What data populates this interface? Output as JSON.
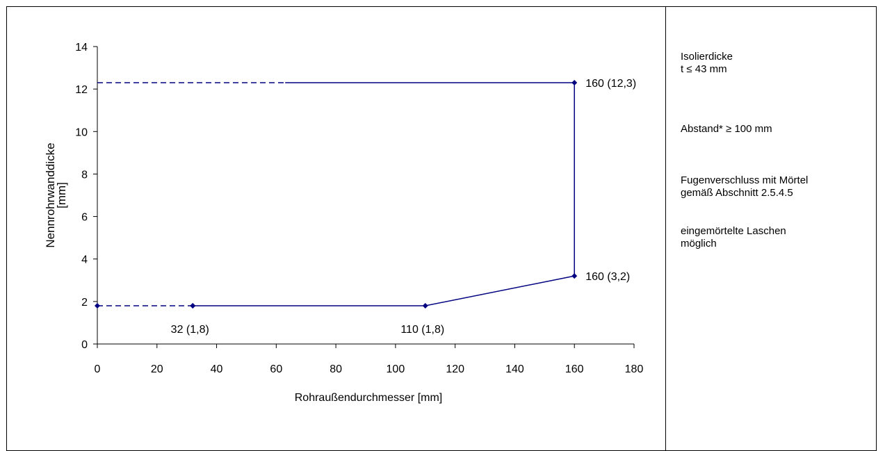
{
  "chart_data": {
    "type": "line",
    "xlabel": "Rohraußendurchmesser [mm]",
    "ylabel": "Nennrohrwanddicke\n[mm]",
    "xlim": [
      0,
      180
    ],
    "ylim": [
      0,
      14
    ],
    "xticks": [
      0,
      20,
      40,
      60,
      80,
      100,
      120,
      140,
      160,
      180
    ],
    "yticks": [
      0,
      2,
      4,
      6,
      8,
      10,
      12,
      14
    ],
    "grid": false,
    "line_color": "#000080",
    "series": [
      {
        "style": "solid",
        "markers": true,
        "x": [
          32,
          110,
          160,
          160
        ],
        "y": [
          1.8,
          1.8,
          3.2,
          12.3
        ]
      },
      {
        "style": "solid",
        "markers": false,
        "x": [
          63,
          160
        ],
        "y": [
          12.3,
          12.3
        ]
      },
      {
        "style": "dashed",
        "markers": true,
        "x": [
          0,
          32
        ],
        "y": [
          1.8,
          1.8
        ]
      },
      {
        "style": "dashed",
        "markers": false,
        "x": [
          0,
          63
        ],
        "y": [
          12.3,
          12.3
        ]
      }
    ],
    "annotations": [
      {
        "text": "32 (1,8)",
        "x": 32,
        "y": 1.8,
        "position": "below"
      },
      {
        "text": "110 (1,8)",
        "x": 110,
        "y": 1.8,
        "position": "below"
      },
      {
        "text": "160 (3,2)",
        "x": 160,
        "y": 3.2,
        "position": "right"
      },
      {
        "text": "160 (12,3)",
        "x": 160,
        "y": 12.3,
        "position": "right"
      }
    ]
  },
  "notes": {
    "thickness": "Isolierdicke\nt ≤ 43 mm",
    "distance": "Abstand* ≥ 100 mm",
    "joint": "Fugenverschluss mit Mörtel\ngemäß Abschnitt 2.5.4.5",
    "straps": "eingemörtelte Laschen\nmöglich"
  }
}
